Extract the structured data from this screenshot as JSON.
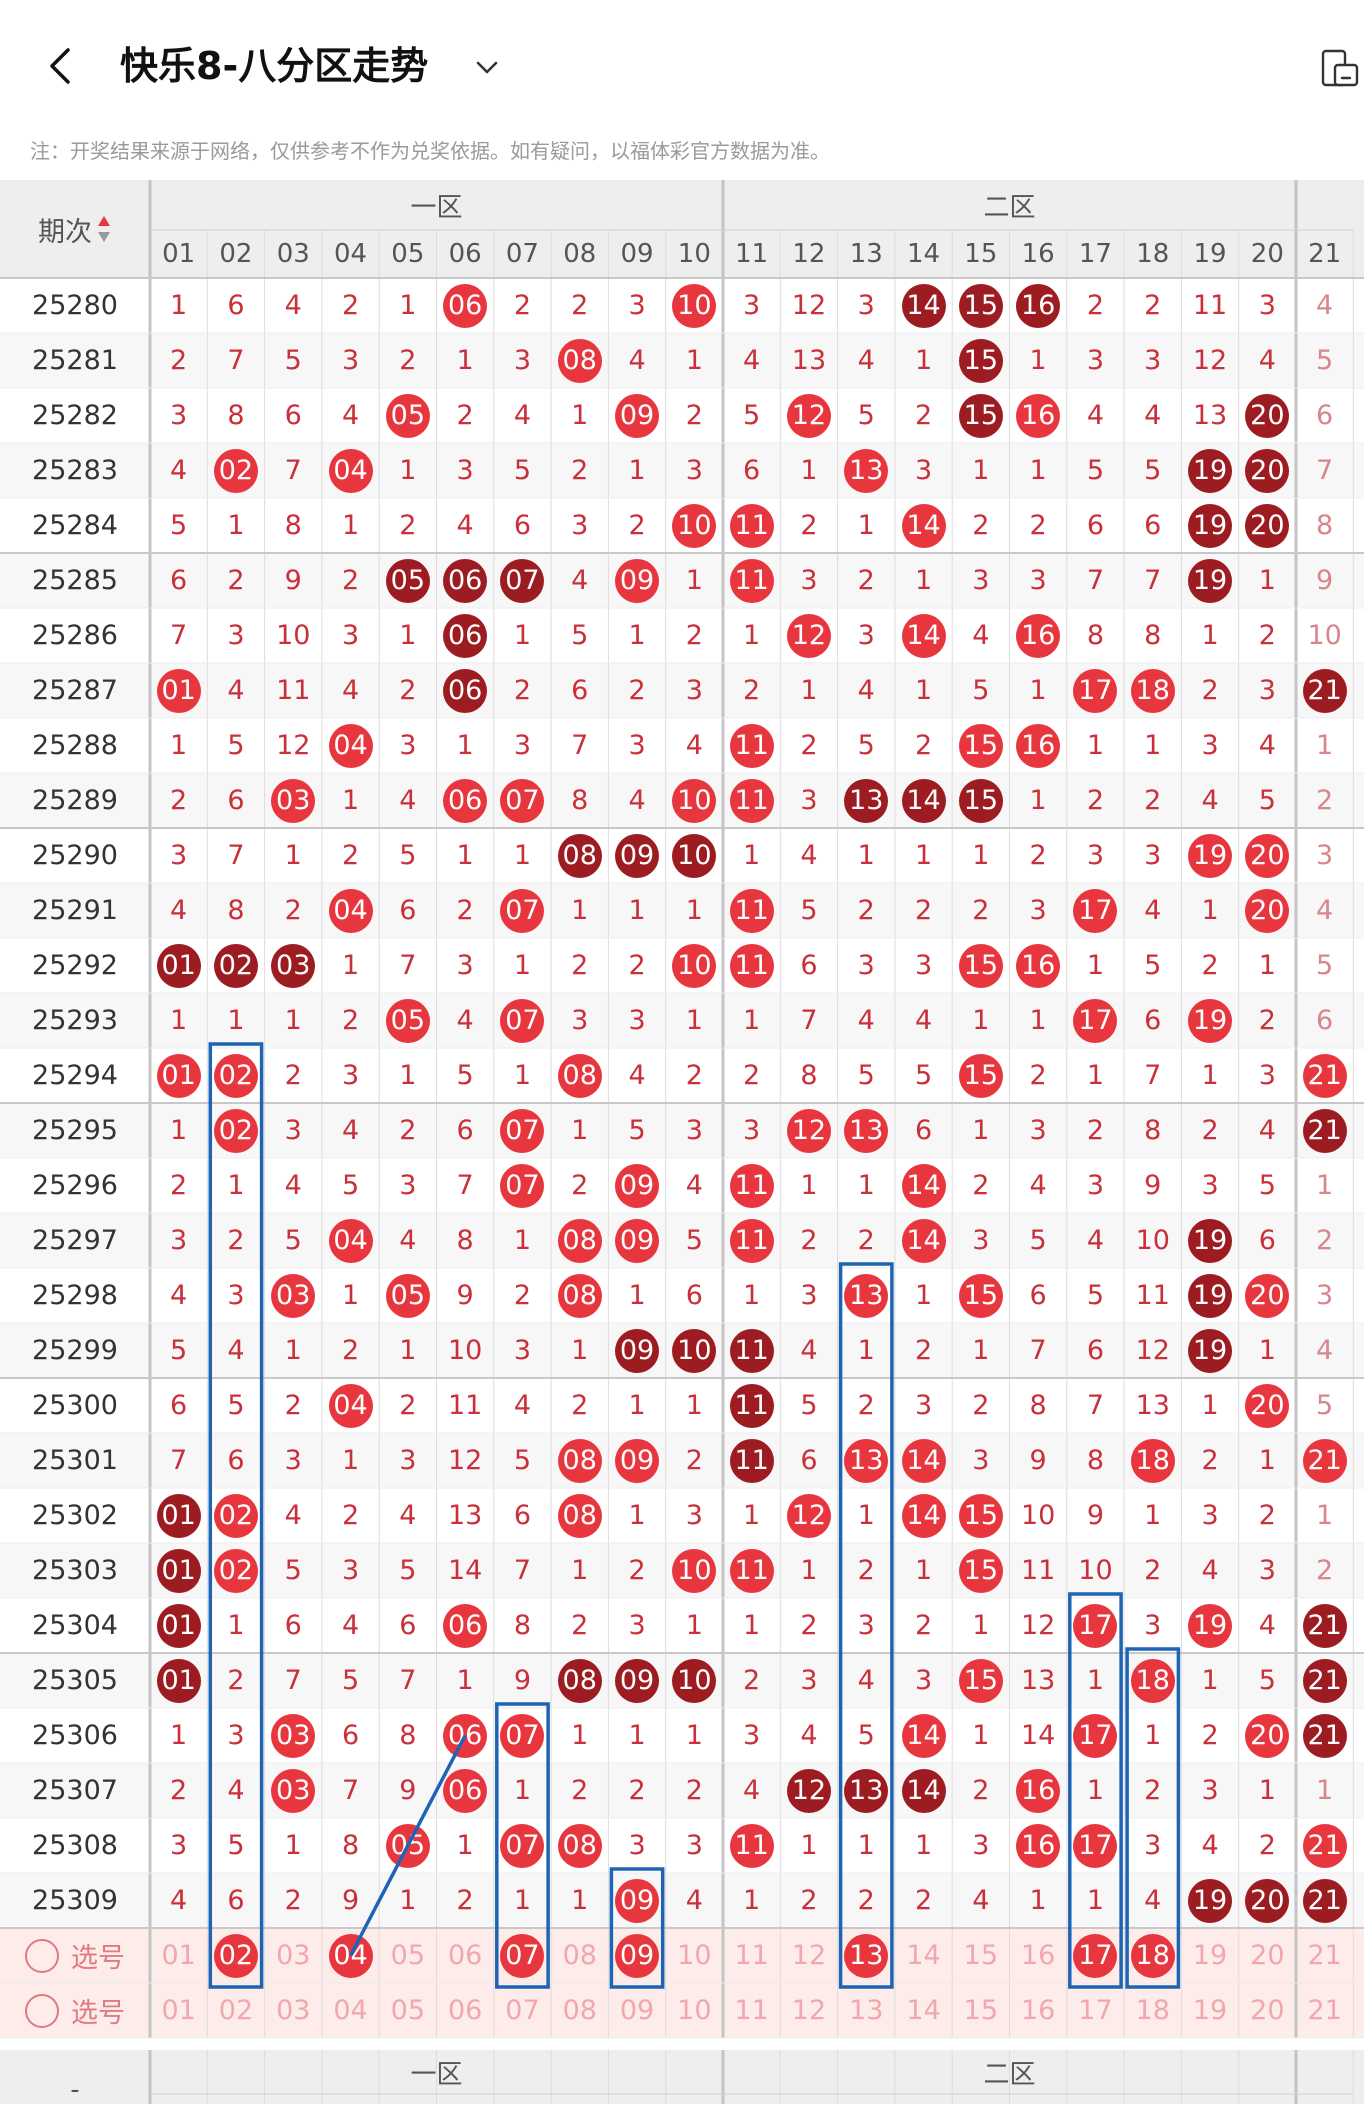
{
  "header": {
    "title": "快乐8-八分区走势"
  },
  "notice": "注：开奖结果来源于网络，仅供参考不作为兑奖依据。如有疑问，以福体彩官方数据为准。",
  "table": {
    "period_label": "期次",
    "sort_icon": "sort-icon",
    "zones": [
      {
        "label": "一区"
      },
      {
        "label": "二区"
      }
    ],
    "columns": [
      "01",
      "02",
      "03",
      "04",
      "05",
      "06",
      "07",
      "08",
      "09",
      "10",
      "11",
      "12",
      "13",
      "14",
      "15",
      "16",
      "17",
      "18",
      "19",
      "20",
      "21"
    ],
    "picker_label": "选号",
    "footer_dash": "-",
    "rows": [
      {
        "period": "25280",
        "cells": [
          "1",
          "6",
          "4",
          "2",
          "1",
          "06",
          "2",
          "2",
          "3",
          "10",
          "3",
          "12",
          "3",
          "14",
          "15",
          "16",
          "2",
          "2",
          "11",
          "3",
          "4"
        ],
        "balls": {
          "06": "r",
          "10": "r",
          "14": "d",
          "15": "d",
          "16": "d"
        }
      },
      {
        "period": "25281",
        "cells": [
          "2",
          "7",
          "5",
          "3",
          "2",
          "1",
          "3",
          "08",
          "4",
          "1",
          "4",
          "13",
          "4",
          "1",
          "15",
          "1",
          "3",
          "3",
          "12",
          "4",
          "5"
        ],
        "balls": {
          "08": "r",
          "15": "d"
        }
      },
      {
        "period": "25282",
        "cells": [
          "3",
          "8",
          "6",
          "4",
          "05",
          "2",
          "4",
          "1",
          "09",
          "2",
          "5",
          "12",
          "5",
          "2",
          "15",
          "16",
          "4",
          "4",
          "13",
          "20",
          "6"
        ],
        "balls": {
          "05": "r",
          "09": "r",
          "12": "r",
          "15": "d",
          "16": "r",
          "20": "d"
        }
      },
      {
        "period": "25283",
        "cells": [
          "4",
          "02",
          "7",
          "04",
          "1",
          "3",
          "5",
          "2",
          "1",
          "3",
          "6",
          "1",
          "13",
          "3",
          "1",
          "1",
          "5",
          "5",
          "19",
          "20",
          "7"
        ],
        "balls": {
          "02": "r",
          "04": "r",
          "13": "r",
          "19": "d",
          "20": "d"
        }
      },
      {
        "period": "25284",
        "cells": [
          "5",
          "1",
          "8",
          "1",
          "2",
          "4",
          "6",
          "3",
          "2",
          "10",
          "11",
          "2",
          "1",
          "14",
          "2",
          "2",
          "6",
          "6",
          "19",
          "20",
          "8"
        ],
        "balls": {
          "10": "r",
          "11": "r",
          "14": "r",
          "19": "d",
          "20": "d"
        }
      },
      {
        "period": "25285",
        "cells": [
          "6",
          "2",
          "9",
          "2",
          "05",
          "06",
          "07",
          "4",
          "09",
          "1",
          "11",
          "3",
          "2",
          "1",
          "3",
          "3",
          "7",
          "7",
          "19",
          "1",
          "9"
        ],
        "balls": {
          "05": "d",
          "06": "d",
          "07": "d",
          "09": "r",
          "11": "r",
          "19": "d"
        }
      },
      {
        "period": "25286",
        "cells": [
          "7",
          "3",
          "10",
          "3",
          "1",
          "06",
          "1",
          "5",
          "1",
          "2",
          "1",
          "12",
          "3",
          "14",
          "4",
          "16",
          "8",
          "8",
          "1",
          "2",
          "10"
        ],
        "balls": {
          "06": "d",
          "12": "r",
          "14": "r",
          "16": "r"
        }
      },
      {
        "period": "25287",
        "cells": [
          "01",
          "4",
          "11",
          "4",
          "2",
          "06",
          "2",
          "6",
          "2",
          "3",
          "2",
          "1",
          "4",
          "1",
          "5",
          "1",
          "17",
          "18",
          "2",
          "3",
          "21"
        ],
        "balls": {
          "01": "r",
          "06": "d",
          "17": "r",
          "18": "r",
          "21": "d"
        }
      },
      {
        "period": "25288",
        "cells": [
          "1",
          "5",
          "12",
          "04",
          "3",
          "1",
          "3",
          "7",
          "3",
          "4",
          "11",
          "2",
          "5",
          "2",
          "15",
          "16",
          "1",
          "1",
          "3",
          "4",
          "1"
        ],
        "balls": {
          "04": "r",
          "11": "r",
          "15": "r",
          "16": "r"
        }
      },
      {
        "period": "25289",
        "cells": [
          "2",
          "6",
          "03",
          "1",
          "4",
          "06",
          "07",
          "8",
          "4",
          "10",
          "11",
          "3",
          "13",
          "14",
          "15",
          "1",
          "2",
          "2",
          "4",
          "5",
          "2"
        ],
        "balls": {
          "03": "r",
          "06": "r",
          "07": "r",
          "10": "r",
          "11": "r",
          "13": "d",
          "14": "d",
          "15": "d"
        }
      },
      {
        "period": "25290",
        "cells": [
          "3",
          "7",
          "1",
          "2",
          "5",
          "1",
          "1",
          "08",
          "09",
          "10",
          "1",
          "4",
          "1",
          "1",
          "1",
          "2",
          "3",
          "3",
          "19",
          "20",
          "3"
        ],
        "balls": {
          "08": "d",
          "09": "d",
          "10": "d",
          "19": "r",
          "20": "r"
        }
      },
      {
        "period": "25291",
        "cells": [
          "4",
          "8",
          "2",
          "04",
          "6",
          "2",
          "07",
          "1",
          "1",
          "1",
          "11",
          "5",
          "2",
          "2",
          "2",
          "3",
          "17",
          "4",
          "1",
          "20",
          "4"
        ],
        "balls": {
          "04": "r",
          "07": "r",
          "11": "r",
          "17": "r",
          "20": "r"
        }
      },
      {
        "period": "25292",
        "cells": [
          "01",
          "02",
          "03",
          "1",
          "7",
          "3",
          "1",
          "2",
          "2",
          "10",
          "11",
          "6",
          "3",
          "3",
          "15",
          "16",
          "1",
          "5",
          "2",
          "1",
          "5"
        ],
        "balls": {
          "01": "d",
          "02": "d",
          "03": "d",
          "10": "r",
          "11": "r",
          "15": "r",
          "16": "r"
        }
      },
      {
        "period": "25293",
        "cells": [
          "1",
          "1",
          "1",
          "2",
          "05",
          "4",
          "07",
          "3",
          "3",
          "1",
          "1",
          "7",
          "4",
          "4",
          "1",
          "1",
          "17",
          "6",
          "19",
          "2",
          "6"
        ],
        "balls": {
          "05": "r",
          "07": "r",
          "17": "r",
          "19": "r"
        }
      },
      {
        "period": "25294",
        "cells": [
          "01",
          "02",
          "2",
          "3",
          "1",
          "5",
          "1",
          "08",
          "4",
          "2",
          "2",
          "8",
          "5",
          "5",
          "15",
          "2",
          "1",
          "7",
          "1",
          "3",
          "21"
        ],
        "balls": {
          "01": "r",
          "02": "r",
          "08": "r",
          "15": "r",
          "21": "r"
        }
      },
      {
        "period": "25295",
        "cells": [
          "1",
          "02",
          "3",
          "4",
          "2",
          "6",
          "07",
          "1",
          "5",
          "3",
          "3",
          "12",
          "13",
          "6",
          "1",
          "3",
          "2",
          "8",
          "2",
          "4",
          "21"
        ],
        "balls": {
          "02": "r",
          "07": "r",
          "12": "r",
          "13": "r",
          "21": "d"
        }
      },
      {
        "period": "25296",
        "cells": [
          "2",
          "1",
          "4",
          "5",
          "3",
          "7",
          "07",
          "2",
          "09",
          "4",
          "11",
          "1",
          "1",
          "14",
          "2",
          "4",
          "3",
          "9",
          "3",
          "5",
          "1"
        ],
        "balls": {
          "07": "r",
          "09": "r",
          "11": "r",
          "14": "r"
        }
      },
      {
        "period": "25297",
        "cells": [
          "3",
          "2",
          "5",
          "04",
          "4",
          "8",
          "1",
          "08",
          "09",
          "5",
          "11",
          "2",
          "2",
          "14",
          "3",
          "5",
          "4",
          "10",
          "19",
          "6",
          "2"
        ],
        "balls": {
          "04": "r",
          "08": "r",
          "09": "r",
          "11": "r",
          "14": "r",
          "19": "d"
        }
      },
      {
        "period": "25298",
        "cells": [
          "4",
          "3",
          "03",
          "1",
          "05",
          "9",
          "2",
          "08",
          "1",
          "6",
          "1",
          "3",
          "13",
          "1",
          "15",
          "6",
          "5",
          "11",
          "19",
          "20",
          "3"
        ],
        "balls": {
          "03": "r",
          "05": "r",
          "08": "r",
          "13": "r",
          "15": "r",
          "19": "d",
          "20": "r"
        }
      },
      {
        "period": "25299",
        "cells": [
          "5",
          "4",
          "1",
          "2",
          "1",
          "10",
          "3",
          "1",
          "09",
          "10",
          "11",
          "4",
          "1",
          "2",
          "1",
          "7",
          "6",
          "12",
          "19",
          "1",
          "4"
        ],
        "balls": {
          "09": "d",
          "10": "d",
          "11": "d",
          "19": "d"
        }
      },
      {
        "period": "25300",
        "cells": [
          "6",
          "5",
          "2",
          "04",
          "2",
          "11",
          "4",
          "2",
          "1",
          "1",
          "11",
          "5",
          "2",
          "3",
          "2",
          "8",
          "7",
          "13",
          "1",
          "20",
          "5"
        ],
        "balls": {
          "04": "r",
          "11": "d",
          "20": "r"
        }
      },
      {
        "period": "25301",
        "cells": [
          "7",
          "6",
          "3",
          "1",
          "3",
          "12",
          "5",
          "08",
          "09",
          "2",
          "11",
          "6",
          "13",
          "14",
          "3",
          "9",
          "8",
          "18",
          "2",
          "1",
          "21"
        ],
        "balls": {
          "08": "r",
          "09": "r",
          "11": "d",
          "13": "r",
          "14": "r",
          "18": "r",
          "21": "r"
        }
      },
      {
        "period": "25302",
        "cells": [
          "01",
          "02",
          "4",
          "2",
          "4",
          "13",
          "6",
          "08",
          "1",
          "3",
          "1",
          "12",
          "1",
          "14",
          "15",
          "10",
          "9",
          "1",
          "3",
          "2",
          "1"
        ],
        "balls": {
          "01": "d",
          "02": "r",
          "08": "r",
          "12": "r",
          "14": "r",
          "15": "r"
        }
      },
      {
        "period": "25303",
        "cells": [
          "01",
          "02",
          "5",
          "3",
          "5",
          "14",
          "7",
          "1",
          "2",
          "10",
          "11",
          "1",
          "2",
          "1",
          "15",
          "11",
          "10",
          "2",
          "4",
          "3",
          "2"
        ],
        "balls": {
          "01": "d",
          "02": "r",
          "10": "r",
          "11": "r",
          "15": "r"
        }
      },
      {
        "period": "25304",
        "cells": [
          "01",
          "1",
          "6",
          "4",
          "6",
          "06",
          "8",
          "2",
          "3",
          "1",
          "1",
          "2",
          "3",
          "2",
          "1",
          "12",
          "17",
          "3",
          "19",
          "4",
          "21"
        ],
        "balls": {
          "01": "d",
          "06": "r",
          "17": "r",
          "19": "r",
          "21": "d"
        }
      },
      {
        "period": "25305",
        "cells": [
          "01",
          "2",
          "7",
          "5",
          "7",
          "1",
          "9",
          "08",
          "09",
          "10",
          "2",
          "3",
          "4",
          "3",
          "15",
          "13",
          "1",
          "18",
          "1",
          "5",
          "21"
        ],
        "balls": {
          "01": "d",
          "08": "d",
          "09": "d",
          "10": "d",
          "15": "r",
          "18": "r",
          "21": "d"
        }
      },
      {
        "period": "25306",
        "cells": [
          "1",
          "3",
          "03",
          "6",
          "8",
          "06",
          "07",
          "1",
          "1",
          "1",
          "3",
          "4",
          "5",
          "14",
          "1",
          "14",
          "17",
          "1",
          "2",
          "20",
          "21"
        ],
        "balls": {
          "03": "r",
          "06": "r",
          "07": "r",
          "14": "r",
          "17": "r",
          "20": "r",
          "21": "d"
        }
      },
      {
        "period": "25307",
        "cells": [
          "2",
          "4",
          "03",
          "7",
          "9",
          "06",
          "1",
          "2",
          "2",
          "2",
          "4",
          "12",
          "13",
          "14",
          "2",
          "16",
          "1",
          "2",
          "3",
          "1",
          "1"
        ],
        "balls": {
          "03": "r",
          "06": "r",
          "12": "d",
          "13": "d",
          "14": "d",
          "16": "r"
        }
      },
      {
        "period": "25308",
        "cells": [
          "3",
          "5",
          "1",
          "8",
          "05",
          "1",
          "07",
          "08",
          "3",
          "3",
          "11",
          "1",
          "1",
          "1",
          "3",
          "16",
          "17",
          "3",
          "4",
          "2",
          "21"
        ],
        "balls": {
          "05": "r",
          "07": "r",
          "08": "r",
          "11": "r",
          "16": "r",
          "17": "r",
          "21": "r"
        }
      },
      {
        "period": "25309",
        "cells": [
          "4",
          "6",
          "2",
          "9",
          "1",
          "2",
          "1",
          "1",
          "09",
          "4",
          "1",
          "2",
          "2",
          "2",
          "4",
          "1",
          "1",
          "4",
          "19",
          "20",
          "21"
        ],
        "balls": {
          "09": "r",
          "19": "d",
          "20": "d",
          "21": "d"
        }
      }
    ],
    "picker_rows": [
      {
        "label": "选号",
        "selected": [
          "02",
          "04",
          "07",
          "09",
          "13",
          "17",
          "18"
        ]
      },
      {
        "label": "选号",
        "selected": []
      }
    ]
  },
  "annotations": {
    "color": "#1e64b4"
  },
  "colors": {
    "ball_red": "#e8363f",
    "ball_dark": "#9c1c22",
    "text_red": "#c9303a",
    "grid_line": "#dcdcdc",
    "header_bg": "#eeeeee",
    "picker_bg": "#fdecea"
  }
}
